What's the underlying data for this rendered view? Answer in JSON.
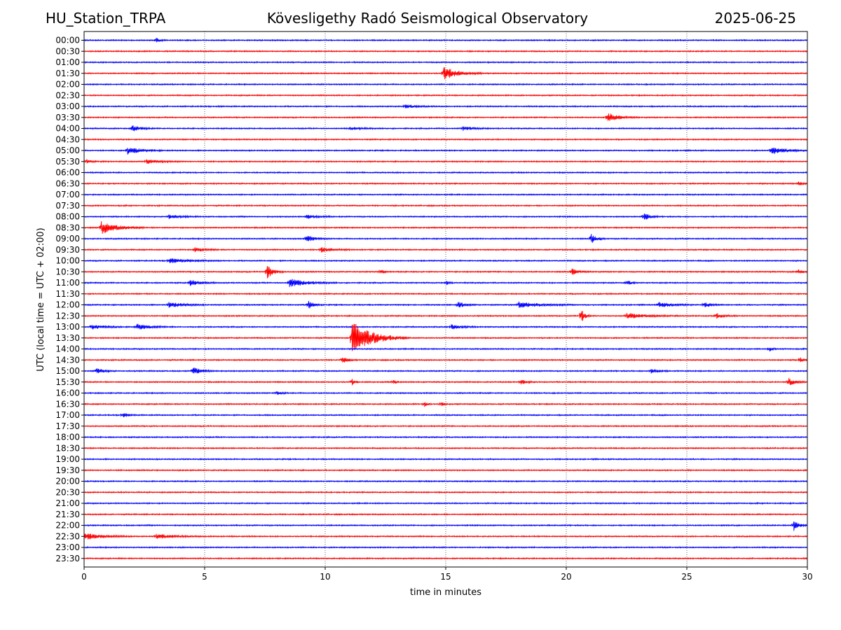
{
  "header": {
    "station": "HU_Station_TRPA",
    "title": "Kövesligethy Radó Seismological Observatory",
    "date": "2025-06-25"
  },
  "chart_data": {
    "type": "line",
    "xlabel": "time in minutes",
    "ylabel": "UTC (local time = UTC + 02:00)",
    "xlim": [
      0,
      30
    ],
    "xticks": [
      0,
      5,
      10,
      15,
      20,
      25,
      30
    ],
    "vertical_gridlines": [
      5,
      10,
      15,
      20,
      25
    ],
    "trace_colors": [
      "#0000ff",
      "#ff0000"
    ],
    "rows": [
      "00:00",
      "00:30",
      "01:00",
      "01:30",
      "02:00",
      "02:30",
      "03:00",
      "03:30",
      "04:00",
      "04:30",
      "05:00",
      "05:30",
      "06:00",
      "06:30",
      "07:00",
      "07:30",
      "08:00",
      "08:30",
      "09:00",
      "09:30",
      "10:00",
      "10:30",
      "11:00",
      "11:30",
      "12:00",
      "12:30",
      "13:00",
      "13:30",
      "14:00",
      "14:30",
      "15:00",
      "15:30",
      "16:00",
      "16:30",
      "17:00",
      "17:30",
      "18:00",
      "18:30",
      "19:00",
      "19:30",
      "20:00",
      "20:30",
      "21:00",
      "21:30",
      "22:00",
      "22:30",
      "23:00",
      "23:30"
    ],
    "events": [
      {
        "row": "00:00",
        "t": 3.0,
        "amp": 3,
        "dur": 0.4
      },
      {
        "row": "01:30",
        "t": 14.9,
        "amp": 9,
        "dur": 1.6
      },
      {
        "row": "03:00",
        "t": 13.3,
        "amp": 3,
        "dur": 1.2
      },
      {
        "row": "03:30",
        "t": 21.7,
        "amp": 6,
        "dur": 1.3
      },
      {
        "row": "04:00",
        "t": 2.0,
        "amp": 4,
        "dur": 1.0
      },
      {
        "row": "04:00",
        "t": 11.0,
        "amp": 2,
        "dur": 1.5
      },
      {
        "row": "04:00",
        "t": 15.7,
        "amp": 3,
        "dur": 1.2
      },
      {
        "row": "05:00",
        "t": 1.8,
        "amp": 5,
        "dur": 1.5
      },
      {
        "row": "05:00",
        "t": 28.5,
        "amp": 6,
        "dur": 1.5
      },
      {
        "row": "05:30",
        "t": 0.1,
        "amp": 3,
        "dur": 0.5
      },
      {
        "row": "05:30",
        "t": 2.6,
        "amp": 3,
        "dur": 1.5
      },
      {
        "row": "06:30",
        "t": 29.6,
        "amp": 4,
        "dur": 0.4
      },
      {
        "row": "08:00",
        "t": 3.5,
        "amp": 3,
        "dur": 1.2
      },
      {
        "row": "08:00",
        "t": 9.2,
        "amp": 3,
        "dur": 1.2
      },
      {
        "row": "08:00",
        "t": 23.2,
        "amp": 7,
        "dur": 0.6
      },
      {
        "row": "08:30",
        "t": 0.7,
        "amp": 9,
        "dur": 1.8
      },
      {
        "row": "09:00",
        "t": 9.2,
        "amp": 5,
        "dur": 1.0
      },
      {
        "row": "09:00",
        "t": 21.0,
        "amp": 8,
        "dur": 0.6
      },
      {
        "row": "09:30",
        "t": 4.6,
        "amp": 3,
        "dur": 1.0
      },
      {
        "row": "09:30",
        "t": 9.8,
        "amp": 4,
        "dur": 1.2
      },
      {
        "row": "10:00",
        "t": 3.5,
        "amp": 3,
        "dur": 2.2
      },
      {
        "row": "10:30",
        "t": 7.6,
        "amp": 9,
        "dur": 0.7
      },
      {
        "row": "10:30",
        "t": 12.3,
        "amp": 4,
        "dur": 0.3
      },
      {
        "row": "10:30",
        "t": 20.2,
        "amp": 5,
        "dur": 0.8
      },
      {
        "row": "10:30",
        "t": 29.6,
        "amp": 4,
        "dur": 0.4
      },
      {
        "row": "11:00",
        "t": 4.4,
        "amp": 4,
        "dur": 1.2
      },
      {
        "row": "11:00",
        "t": 8.5,
        "amp": 6,
        "dur": 2.0
      },
      {
        "row": "11:00",
        "t": 15.0,
        "amp": 4,
        "dur": 0.3
      },
      {
        "row": "11:00",
        "t": 22.5,
        "amp": 4,
        "dur": 0.5
      },
      {
        "row": "12:00",
        "t": 3.5,
        "amp": 4,
        "dur": 1.5
      },
      {
        "row": "12:00",
        "t": 9.3,
        "amp": 6,
        "dur": 0.6
      },
      {
        "row": "12:00",
        "t": 15.5,
        "amp": 5,
        "dur": 0.7
      },
      {
        "row": "12:00",
        "t": 18.0,
        "amp": 4,
        "dur": 2.5
      },
      {
        "row": "12:00",
        "t": 23.8,
        "amp": 4,
        "dur": 1.5
      },
      {
        "row": "12:00",
        "t": 25.7,
        "amp": 4,
        "dur": 0.8
      },
      {
        "row": "12:30",
        "t": 20.6,
        "amp": 12,
        "dur": 0.4
      },
      {
        "row": "12:30",
        "t": 22.5,
        "amp": 4,
        "dur": 2.2
      },
      {
        "row": "12:30",
        "t": 26.2,
        "amp": 4,
        "dur": 0.8
      },
      {
        "row": "13:00",
        "t": 0.3,
        "amp": 4,
        "dur": 1.3
      },
      {
        "row": "13:00",
        "t": 2.2,
        "amp": 4,
        "dur": 1.5
      },
      {
        "row": "13:00",
        "t": 15.2,
        "amp": 4,
        "dur": 1.0
      },
      {
        "row": "13:30",
        "t": 11.1,
        "amp": 24,
        "dur": 2.3
      },
      {
        "row": "14:00",
        "t": 28.4,
        "amp": 4,
        "dur": 0.3
      },
      {
        "row": "14:30",
        "t": 10.7,
        "amp": 5,
        "dur": 0.6
      },
      {
        "row": "14:30",
        "t": 29.7,
        "amp": 5,
        "dur": 0.3
      },
      {
        "row": "15:00",
        "t": 0.5,
        "amp": 4,
        "dur": 0.8
      },
      {
        "row": "15:00",
        "t": 4.5,
        "amp": 5,
        "dur": 1.1
      },
      {
        "row": "15:00",
        "t": 23.5,
        "amp": 4,
        "dur": 0.8
      },
      {
        "row": "15:30",
        "t": 11.1,
        "amp": 5,
        "dur": 0.3
      },
      {
        "row": "15:30",
        "t": 12.8,
        "amp": 4,
        "dur": 0.3
      },
      {
        "row": "15:30",
        "t": 18.1,
        "amp": 4,
        "dur": 0.6
      },
      {
        "row": "15:30",
        "t": 29.2,
        "amp": 6,
        "dur": 0.7
      },
      {
        "row": "16:00",
        "t": 8.0,
        "amp": 3,
        "dur": 0.5
      },
      {
        "row": "16:30",
        "t": 14.1,
        "amp": 4,
        "dur": 0.3
      },
      {
        "row": "16:30",
        "t": 14.8,
        "amp": 4,
        "dur": 0.3
      },
      {
        "row": "17:00",
        "t": 1.6,
        "amp": 3,
        "dur": 0.6
      },
      {
        "row": "22:00",
        "t": 29.4,
        "amp": 9,
        "dur": 0.6
      },
      {
        "row": "22:30",
        "t": 0.0,
        "amp": 5,
        "dur": 2.0
      },
      {
        "row": "22:30",
        "t": 3.0,
        "amp": 3,
        "dur": 2.0
      }
    ]
  }
}
